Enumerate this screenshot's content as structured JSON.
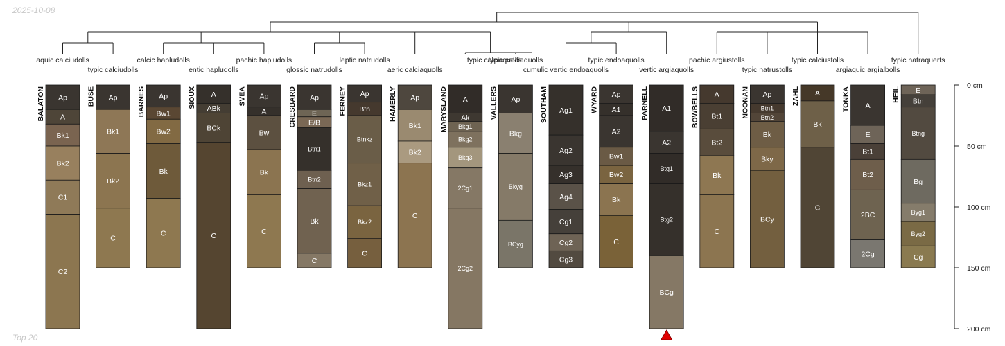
{
  "date_label": "2025-10-08",
  "footer_label": "Top 20",
  "chart_data": {
    "type": "soil-profile-sketch",
    "title": "",
    "depth_unit": "cm",
    "depth_range": [
      0,
      200
    ],
    "depth_ticks": [
      0,
      50,
      100,
      150,
      200
    ],
    "depth_tick_labels": [
      "0 cm",
      "50 cm",
      "100 cm",
      "150 cm",
      "200 cm"
    ],
    "dendrogram": {
      "root_node": {
        "span": [
          "g1",
          "HEIL"
        ]
      },
      "nodes": {
        "g1": [
          "g2",
          "g3"
        ],
        "g2": [
          "g4",
          "g5",
          "g6",
          "g7"
        ],
        "g3": [
          "g8",
          "g9"
        ],
        "g4": [
          "BALATON",
          "BUSE"
        ],
        "g5": [
          "BARNES",
          "g5b"
        ],
        "g5b": [
          "SIOUX",
          "SVEA"
        ],
        "g6": [
          "CRESBARD",
          "FERNEY"
        ],
        "g7": [
          "HAMERLY",
          "g7b"
        ],
        "g7b": [
          "MARYSLAND",
          "VALLERS"
        ],
        "g8": [
          "g8a",
          "g8b"
        ],
        "g8a": [
          "SOUTHAM",
          "WYARD"
        ],
        "g8b": [
          "PARNELL"
        ],
        "g9": [
          "g9a",
          "TONKA"
        ],
        "g9a": [
          "BOWBELLS",
          "NOONAN",
          "ZAHL"
        ]
      }
    },
    "profiles": [
      {
        "name": "BALATON",
        "taxon": "aquic calciudolls",
        "label_row": 1,
        "bottom": 200,
        "horizons": [
          {
            "name": "Ap",
            "top": 0,
            "bottom": 20,
            "color": "#3a3530"
          },
          {
            "name": "A",
            "top": 20,
            "bottom": 32,
            "color": "#4e4538"
          },
          {
            "name": "Bk1",
            "top": 32,
            "bottom": 50,
            "color": "#7a6450"
          },
          {
            "name": "Bk2",
            "top": 50,
            "bottom": 78,
            "color": "#98805e"
          },
          {
            "name": "C1",
            "top": 78,
            "bottom": 106,
            "color": "#8f7a58"
          },
          {
            "name": "C2",
            "top": 106,
            "bottom": 200,
            "color": "#8c7650"
          }
        ]
      },
      {
        "name": "BUSE",
        "taxon": "typic calciudolls",
        "label_row": 2,
        "bottom": 150,
        "horizons": [
          {
            "name": "Ap",
            "top": 0,
            "bottom": 20,
            "color": "#3a3530"
          },
          {
            "name": "Bk1",
            "top": 20,
            "bottom": 56,
            "color": "#8e7756"
          },
          {
            "name": "Bk2",
            "top": 56,
            "bottom": 101,
            "color": "#8c7550"
          },
          {
            "name": "C",
            "top": 101,
            "bottom": 150,
            "color": "#8e7850"
          }
        ]
      },
      {
        "name": "BARNES",
        "taxon": "calcic hapludolls",
        "label_row": 1,
        "bottom": 150,
        "horizons": [
          {
            "name": "Ap",
            "top": 0,
            "bottom": 18,
            "color": "#3a3530"
          },
          {
            "name": "Bw1",
            "top": 18,
            "bottom": 28,
            "color": "#5a4733"
          },
          {
            "name": "Bw2",
            "top": 28,
            "bottom": 48,
            "color": "#826a43"
          },
          {
            "name": "Bk",
            "top": 48,
            "bottom": 93,
            "color": "#6e5a3a"
          },
          {
            "name": "C",
            "top": 93,
            "bottom": 150,
            "color": "#8e7850"
          }
        ]
      },
      {
        "name": "SIOUX",
        "taxon": "entic hapludolls",
        "label_row": 2,
        "bottom": 200,
        "horizons": [
          {
            "name": "A",
            "top": 0,
            "bottom": 15,
            "color": "#35302b"
          },
          {
            "name": "ABk",
            "top": 15,
            "bottom": 23,
            "color": "#443d33"
          },
          {
            "name": "BCk",
            "top": 23,
            "bottom": 47,
            "color": "#4e4435"
          },
          {
            "name": "C",
            "top": 47,
            "bottom": 200,
            "color": "#554530"
          }
        ]
      },
      {
        "name": "SVEA",
        "taxon": "pachic hapludolls",
        "label_row": 1,
        "bottom": 150,
        "horizons": [
          {
            "name": "Ap",
            "top": 0,
            "bottom": 18,
            "color": "#3a3530"
          },
          {
            "name": "A",
            "top": 18,
            "bottom": 25,
            "color": "#35302b"
          },
          {
            "name": "Bw",
            "top": 25,
            "bottom": 53,
            "color": "#5c5040"
          },
          {
            "name": "Bk",
            "top": 53,
            "bottom": 90,
            "color": "#8b7450"
          },
          {
            "name": "C",
            "top": 90,
            "bottom": 150,
            "color": "#8e7850"
          }
        ]
      },
      {
        "name": "CRESBARD",
        "taxon": "glossic natrudolls",
        "label_row": 2,
        "bottom": 150,
        "horizons": [
          {
            "name": "Ap",
            "top": 0,
            "bottom": 20,
            "color": "#3a3530"
          },
          {
            "name": "E",
            "top": 20,
            "bottom": 26,
            "color": "#6e6555"
          },
          {
            "name": "E/B",
            "top": 26,
            "bottom": 35,
            "color": "#7a6855"
          },
          {
            "name": "Btn1",
            "top": 35,
            "bottom": 70,
            "color": "#35302b"
          },
          {
            "name": "Btn2",
            "top": 70,
            "bottom": 85,
            "color": "#6e6050"
          },
          {
            "name": "Bk",
            "top": 85,
            "bottom": 138,
            "color": "#706250"
          },
          {
            "name": "C",
            "top": 138,
            "bottom": 150,
            "color": "#857865"
          }
        ]
      },
      {
        "name": "FERNEY",
        "taxon": "leptic natrudolls",
        "label_row": 1,
        "bottom": 150,
        "horizons": [
          {
            "name": "Ap",
            "top": 0,
            "bottom": 14,
            "color": "#3a3530"
          },
          {
            "name": "Btn",
            "top": 14,
            "bottom": 25,
            "color": "#45392e"
          },
          {
            "name": "Btnkz",
            "top": 25,
            "bottom": 64,
            "color": "#6a5d48"
          },
          {
            "name": "Bkz1",
            "top": 64,
            "bottom": 99,
            "color": "#706048"
          },
          {
            "name": "Bkz2",
            "top": 99,
            "bottom": 126,
            "color": "#7a6440"
          },
          {
            "name": "C",
            "top": 126,
            "bottom": 150,
            "color": "#765f3e"
          }
        ]
      },
      {
        "name": "HAMERLY",
        "taxon": "aeric calciaquolls",
        "label_row": 2,
        "bottom": 150,
        "horizons": [
          {
            "name": "Ap",
            "top": 0,
            "bottom": 20,
            "color": "#4e473e"
          },
          {
            "name": "Bk1",
            "top": 20,
            "bottom": 46,
            "color": "#9a8a70"
          },
          {
            "name": "Bk2",
            "top": 46,
            "bottom": 64,
            "color": "#aa9a80"
          },
          {
            "name": "C",
            "top": 64,
            "bottom": 150,
            "color": "#8c7450"
          }
        ]
      },
      {
        "name": "MARYSLAND",
        "taxon": "",
        "label_row": 1,
        "bottom": 200,
        "horizons": [
          {
            "name": "A",
            "top": 0,
            "bottom": 23,
            "color": "#312c28"
          },
          {
            "name": "Ak",
            "top": 23,
            "bottom": 30,
            "color": "#3e3831"
          },
          {
            "name": "Bkg1",
            "top": 30,
            "bottom": 38,
            "color": "#6e6352"
          },
          {
            "name": "Bkg2",
            "top": 38,
            "bottom": 51,
            "color": "#7e715e"
          },
          {
            "name": "Bkg3",
            "top": 51,
            "bottom": 68,
            "color": "#a3967d"
          },
          {
            "name": "2Cg1",
            "top": 68,
            "bottom": 101,
            "color": "#857865"
          },
          {
            "name": "2Cg2",
            "top": 101,
            "bottom": 200,
            "color": "#857763"
          }
        ]
      },
      {
        "name": "VALLERS",
        "taxon": "typic calciaquolls",
        "label_row": 1,
        "bottom": 150,
        "horizons": [
          {
            "name": "Ap",
            "top": 0,
            "bottom": 23,
            "color": "#3a3530"
          },
          {
            "name": "Bkg",
            "top": 23,
            "bottom": 56,
            "color": "#8a8070"
          },
          {
            "name": "Bkyg",
            "top": 56,
            "bottom": 111,
            "color": "#857a68"
          },
          {
            "name": "BCyg",
            "top": 111,
            "bottom": 150,
            "color": "#7a7568"
          }
        ]
      },
      {
        "name": "SOUTHAM",
        "taxon": "cumulic vertic endoaquolls",
        "label_row": 2,
        "bottom": 150,
        "horizons": [
          {
            "name": "Ag1",
            "top": 0,
            "bottom": 41,
            "color": "#35302b"
          },
          {
            "name": "Ag2",
            "top": 41,
            "bottom": 66,
            "color": "#3a3530"
          },
          {
            "name": "Ag3",
            "top": 66,
            "bottom": 81,
            "color": "#35302b"
          },
          {
            "name": "Ag4",
            "top": 81,
            "bottom": 102,
            "color": "#5a5248"
          },
          {
            "name": "Cg1",
            "top": 102,
            "bottom": 122,
            "color": "#45403a"
          },
          {
            "name": "Cg2",
            "top": 122,
            "bottom": 136,
            "color": "#6e6355"
          },
          {
            "name": "Cg3",
            "top": 136,
            "bottom": 150,
            "color": "#524a40"
          }
        ]
      },
      {
        "name": "WYARD",
        "taxon": "typic endoaquolls",
        "label_row": 1,
        "bottom": 150,
        "horizons": [
          {
            "name": "Ap",
            "top": 0,
            "bottom": 15,
            "color": "#3a3530"
          },
          {
            "name": "A1",
            "top": 15,
            "bottom": 25,
            "color": "#35302b"
          },
          {
            "name": "A2",
            "top": 25,
            "bottom": 51,
            "color": "#3a3530"
          },
          {
            "name": "Bw1",
            "top": 51,
            "bottom": 66,
            "color": "#6a5a45"
          },
          {
            "name": "Bw2",
            "top": 66,
            "bottom": 81,
            "color": "#7a6440"
          },
          {
            "name": "Bk",
            "top": 81,
            "bottom": 107,
            "color": "#8b7450"
          },
          {
            "name": "C",
            "top": 107,
            "bottom": 150,
            "color": "#7a6238"
          }
        ]
      },
      {
        "name": "PARNELL",
        "taxon": "vertic argiaquolls",
        "label_row": 2,
        "bottom": 200,
        "truncated": true,
        "horizons": [
          {
            "name": "A1",
            "top": 0,
            "bottom": 38,
            "color": "#312c28"
          },
          {
            "name": "A2",
            "top": 38,
            "bottom": 56,
            "color": "#3a3530"
          },
          {
            "name": "Btg1",
            "top": 56,
            "bottom": 81,
            "color": "#312c28"
          },
          {
            "name": "Btg2",
            "top": 81,
            "bottom": 140,
            "color": "#35302b"
          },
          {
            "name": "BCg",
            "top": 140,
            "bottom": 200,
            "color": "#857865"
          }
        ]
      },
      {
        "name": "BOWBELLS",
        "taxon": "pachic argiustolls",
        "label_row": 1,
        "bottom": 150,
        "horizons": [
          {
            "name": "A",
            "top": 0,
            "bottom": 15,
            "color": "#45392e"
          },
          {
            "name": "Bt1",
            "top": 15,
            "bottom": 36,
            "color": "#4a3f33"
          },
          {
            "name": "Bt2",
            "top": 36,
            "bottom": 58,
            "color": "#594c3c"
          },
          {
            "name": "Bk",
            "top": 58,
            "bottom": 90,
            "color": "#8e7752"
          },
          {
            "name": "C",
            "top": 90,
            "bottom": 150,
            "color": "#8c7550"
          }
        ]
      },
      {
        "name": "NOONAN",
        "taxon": "typic natrustolls",
        "label_row": 2,
        "bottom": 150,
        "horizons": [
          {
            "name": "Ap",
            "top": 0,
            "bottom": 15,
            "color": "#3a3530"
          },
          {
            "name": "Btn1",
            "top": 15,
            "bottom": 23,
            "color": "#45392e"
          },
          {
            "name": "Btn2",
            "top": 23,
            "bottom": 30,
            "color": "#524538"
          },
          {
            "name": "Bk",
            "top": 30,
            "bottom": 51,
            "color": "#6e5d45"
          },
          {
            "name": "Bky",
            "top": 51,
            "bottom": 70,
            "color": "#7e6848"
          },
          {
            "name": "BCy",
            "top": 70,
            "bottom": 150,
            "color": "#735f3f"
          }
        ]
      },
      {
        "name": "ZAHL",
        "taxon": "typic calciustolls",
        "label_row": 1,
        "bottom": 150,
        "horizons": [
          {
            "name": "A",
            "top": 0,
            "bottom": 13,
            "color": "#453828"
          },
          {
            "name": "Bk",
            "top": 13,
            "bottom": 51,
            "color": "#6e6048"
          },
          {
            "name": "C",
            "top": 51,
            "bottom": 150,
            "color": "#504535"
          }
        ]
      },
      {
        "name": "TONKA",
        "taxon": "argiaquic argialbolls",
        "label_row": 2,
        "bottom": 150,
        "horizons": [
          {
            "name": "A",
            "top": 0,
            "bottom": 33,
            "color": "#3a3530"
          },
          {
            "name": "E",
            "top": 33,
            "bottom": 48,
            "color": "#6e6458"
          },
          {
            "name": "Bt1",
            "top": 48,
            "bottom": 61,
            "color": "#4a4038"
          },
          {
            "name": "Bt2",
            "top": 61,
            "bottom": 86,
            "color": "#6e5e4b"
          },
          {
            "name": "2BC",
            "top": 86,
            "bottom": 127,
            "color": "#6e6350"
          },
          {
            "name": "2Cg",
            "top": 127,
            "bottom": 150,
            "color": "#7a7770"
          }
        ]
      },
      {
        "name": "HEIL",
        "taxon": "typic natraquerts",
        "label_row": 1,
        "bottom": 150,
        "horizons": [
          {
            "name": "E",
            "top": 0,
            "bottom": 8,
            "color": "#6e6458"
          },
          {
            "name": "Btn",
            "top": 8,
            "bottom": 18,
            "color": "#45403a"
          },
          {
            "name": "Btng",
            "top": 18,
            "bottom": 61,
            "color": "#524a40"
          },
          {
            "name": "Bg",
            "top": 61,
            "bottom": 97,
            "color": "#6e6a60"
          },
          {
            "name": "Byg1",
            "top": 97,
            "bottom": 112,
            "color": "#857c6b"
          },
          {
            "name": "Byg2",
            "top": 112,
            "bottom": 132,
            "color": "#7a6a45"
          },
          {
            "name": "Cg",
            "top": 132,
            "bottom": 150,
            "color": "#8a7a50"
          }
        ]
      }
    ],
    "extra_labels": [
      {
        "text": "typic calciaquolls",
        "near": "MARYSLAND"
      }
    ]
  }
}
